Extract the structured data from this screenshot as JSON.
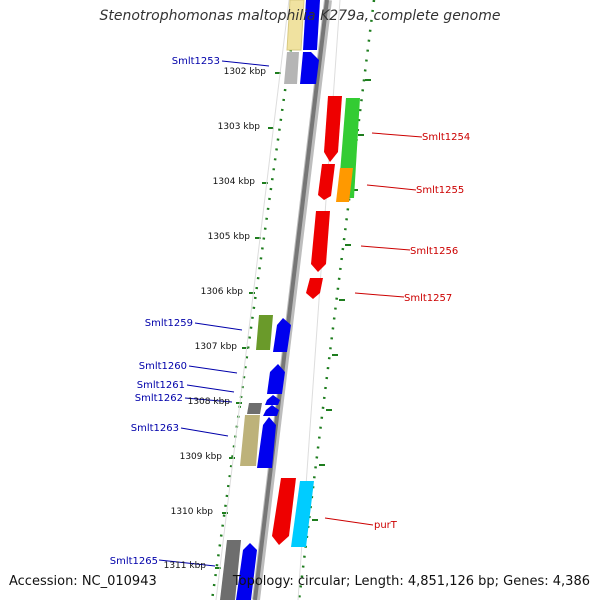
{
  "header": {
    "title": "Stenotrophomonas maltophilia K279a, complete genome"
  },
  "footer": {
    "accession": "Accession: NC_010943",
    "summary": "Topology: circular; Length: 4,851,126 bp; Genes: 4,386"
  },
  "colors": {
    "backbone": "#8c8c8c",
    "strand_marker": "#1e7d1e",
    "forward_label": "#0000aa",
    "reverse_label": "#cc0000"
  },
  "ticks": [
    {
      "label": "1302 kbp"
    },
    {
      "label": "1303 kbp"
    },
    {
      "label": "1304 kbp"
    },
    {
      "label": "1305 kbp"
    },
    {
      "label": "1306 kbp"
    },
    {
      "label": "1307 kbp"
    },
    {
      "label": "1308 kbp"
    },
    {
      "label": "1309 kbp"
    },
    {
      "label": "1310 kbp"
    },
    {
      "label": "1311 kbp"
    }
  ],
  "gene_labels": {
    "Smlt1253": "Smlt1253",
    "Smlt1254": "Smlt1254",
    "Smlt1255": "Smlt1255",
    "Smlt1256": "Smlt1256",
    "Smlt1257": "Smlt1257",
    "Smlt1259": "Smlt1259",
    "Smlt1260": "Smlt1260",
    "Smlt1261": "Smlt1261",
    "Smlt1262": "Smlt1262",
    "Smlt1263": "Smlt1263",
    "purT": "purT",
    "Smlt1265": "Smlt1265"
  }
}
